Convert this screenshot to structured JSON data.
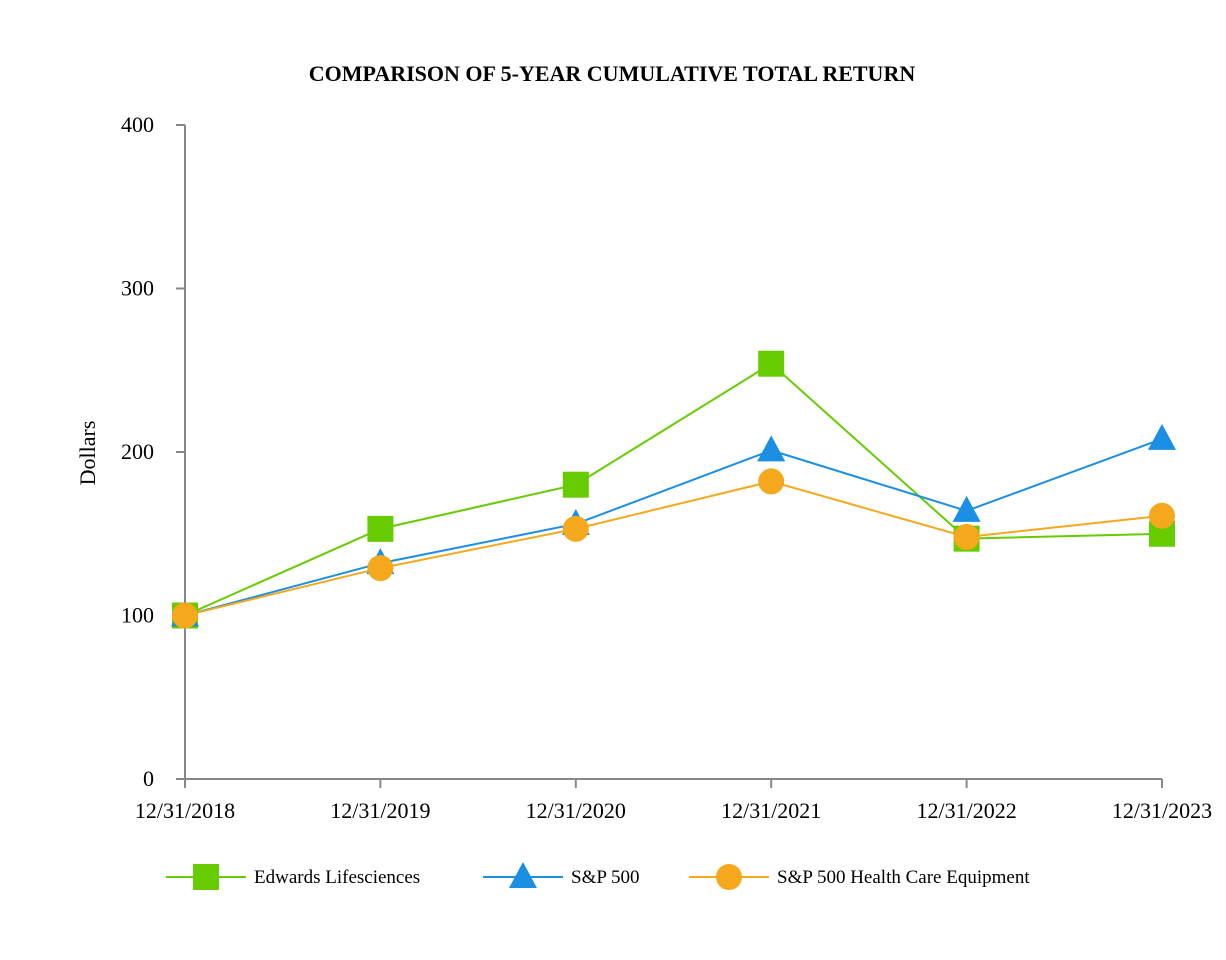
{
  "chart_data": {
    "type": "line",
    "title": "COMPARISON OF 5-YEAR CUMULATIVE TOTAL RETURN",
    "xlabel": "",
    "ylabel": "Dollars",
    "categories": [
      "12/31/2018",
      "12/31/2019",
      "12/31/2020",
      "12/31/2021",
      "12/31/2022",
      "12/31/2023"
    ],
    "ylim": [
      0,
      400
    ],
    "yticks": [
      "0",
      "100",
      "200",
      "300",
      "400"
    ],
    "grid": false,
    "legend_position": "bottom",
    "series": [
      {
        "name": "Edwards Lifesciences",
        "marker": "square",
        "color": "#66cc00",
        "values": [
          100,
          153,
          180,
          254,
          147,
          150
        ]
      },
      {
        "name": "S&P 500",
        "marker": "triangle",
        "color": "#1a8fe3",
        "values": [
          100,
          132,
          156,
          201,
          164,
          208
        ]
      },
      {
        "name": "S&P 500 Health Care Equipment",
        "marker": "circle",
        "color": "#f5a81c",
        "values": [
          100,
          129,
          153,
          182,
          148,
          161
        ]
      }
    ]
  }
}
